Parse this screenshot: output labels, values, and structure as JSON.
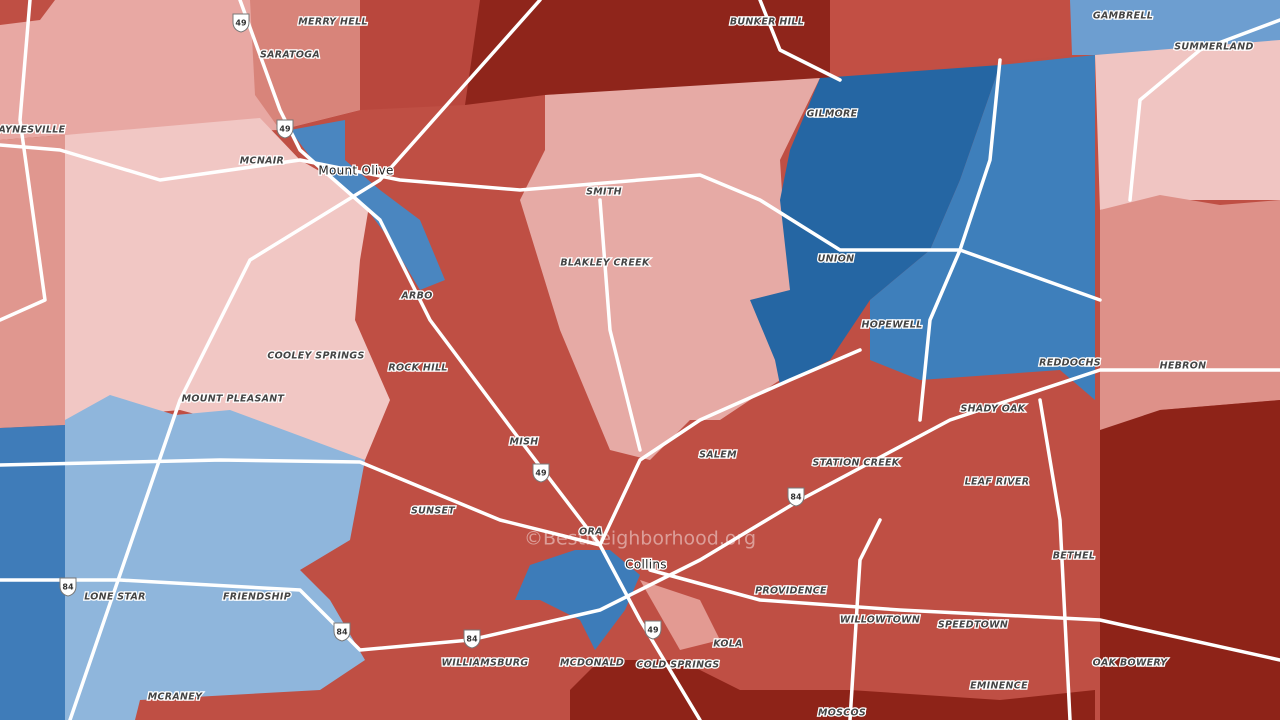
{
  "places": [
    "MERRY HELL",
    "BUNKER HILL",
    "GAMBRELL",
    "SARATOGA",
    "SUMMERLAND",
    "JAYNESVILLE",
    "GILMORE",
    "MCNAIR",
    "Mount Olive",
    "SMITH",
    "BLAKLEY CREEK",
    "UNION",
    "ARBO",
    "HOPEWELL",
    "COOLEY SPRINGS",
    "REDDOCHS",
    "HEBRON",
    "ROCK HILL",
    "MOUNT PLEASANT",
    "SHADY OAK",
    "MISH",
    "SALEM",
    "STATION CREEK",
    "LEAF RIVER",
    "SUNSET",
    "ORA",
    "BETHEL",
    "Collins",
    "LONE STAR",
    "FRIENDSHIP",
    "PROVIDENCE",
    "WILLOWTOWN",
    "SPEEDTOWN",
    "KOLA",
    "WILLIAMSBURG",
    "MCDONALD",
    "COLD SPRINGS",
    "OAK BOWERY",
    "EMINENCE",
    "MCRANEY",
    "MOSCOS"
  ],
  "highway_shields": [
    "49",
    "49",
    "49",
    "84",
    "84",
    "84",
    "84",
    "49"
  ],
  "watermark": "©BestNeighborhood.org"
}
